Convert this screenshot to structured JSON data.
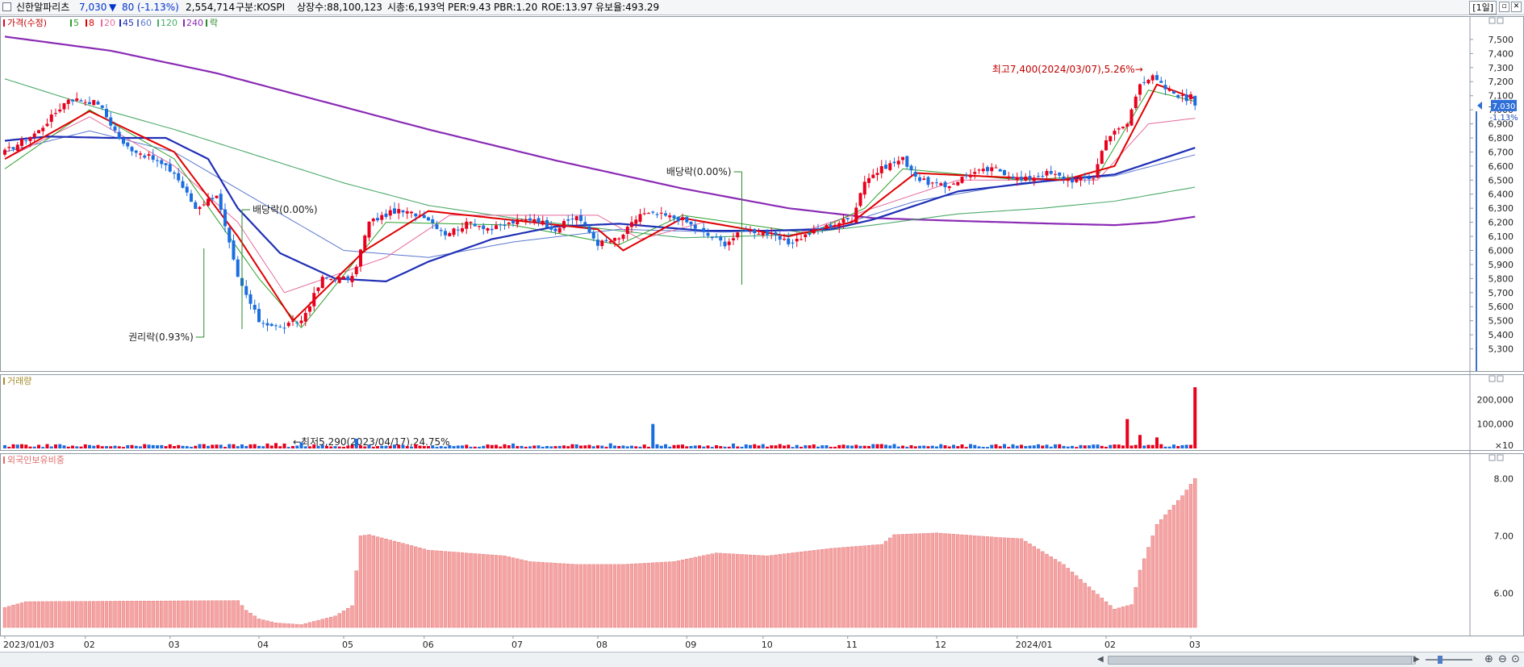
{
  "header": {
    "name": "신한알파리츠",
    "price": "7,030",
    "change_arrow": "▼",
    "change": "80",
    "change_pct": "(-1.13%)",
    "volume": "2,554,714",
    "market": "구분:KOSPI",
    "shares": "상장수:88,100,123",
    "mcap": "시총:6,193억",
    "per": "PER:9.43",
    "pbr": "PBR:1.20",
    "roe": "ROE:13.97",
    "float_ratio": "유보율:493.29",
    "period": "[1일]"
  },
  "legend": {
    "price_label": "가격(수정)",
    "ma_labels": [
      "5",
      "8",
      "20",
      "45",
      "60",
      "120",
      "240"
    ],
    "drop_label": "락",
    "volume_label": "거래량",
    "foreign_label": "외국인보유비중"
  },
  "colors": {
    "up": "#e8001c",
    "down": "#1a6ee0",
    "ma5": "#2ca02c",
    "ma8": "#e00000",
    "ma20": "#e56b9d",
    "ma45": "#1f2fb5",
    "ma60": "#5a78d0",
    "ma120": "#4caa6a",
    "ma240": "#8a2bb5",
    "foreign": "#f5a3a3"
  },
  "chart_data": [
    {
      "type": "candlestick",
      "title": "가격(수정)",
      "y_ticks": [
        5300,
        5400,
        5500,
        5600,
        5700,
        5800,
        5900,
        6000,
        6100,
        6200,
        6300,
        6400,
        6500,
        6600,
        6700,
        6800,
        6900,
        7000,
        7100,
        7200,
        7300,
        7400,
        7500
      ],
      "y_tick_labels": [
        "5,300",
        "5,400",
        "5,500",
        "5,600",
        "5,700",
        "5,800",
        "5,900",
        "6,000",
        "6,100",
        "6,200",
        "6,300",
        "6,400",
        "6,500",
        "6,600",
        "6,700",
        "6,800",
        "6,900",
        "7,000",
        "7,100",
        "7,200",
        "7,300",
        "7,400",
        "7,500"
      ],
      "ylim": [
        5200,
        7620
      ],
      "x_labels": [
        "2023/01/03",
        "02",
        "03",
        "04",
        "05",
        "06",
        "07",
        "08",
        "09",
        "10",
        "11",
        "12",
        "2024/01",
        "02",
        "03"
      ],
      "current_price": "7,030",
      "current_change": "-1.13%",
      "close_keypoints": [
        [
          0,
          6700
        ],
        [
          8,
          6850
        ],
        [
          15,
          7080
        ],
        [
          22,
          7050
        ],
        [
          28,
          6750
        ],
        [
          35,
          6650
        ],
        [
          40,
          6550
        ],
        [
          45,
          6300
        ],
        [
          50,
          6400
        ],
        [
          55,
          5800
        ],
        [
          60,
          5500
        ],
        [
          65,
          5450
        ],
        [
          70,
          5500
        ],
        [
          75,
          5800
        ],
        [
          82,
          5800
        ],
        [
          86,
          6200
        ],
        [
          92,
          6280
        ],
        [
          99,
          6250
        ],
        [
          104,
          6120
        ],
        [
          110,
          6200
        ],
        [
          115,
          6150
        ],
        [
          120,
          6200
        ],
        [
          125,
          6230
        ],
        [
          130,
          6150
        ],
        [
          135,
          6250
        ],
        [
          140,
          6050
        ],
        [
          145,
          6080
        ],
        [
          150,
          6260
        ],
        [
          155,
          6250
        ],
        [
          160,
          6220
        ],
        [
          165,
          6120
        ],
        [
          170,
          6050
        ],
        [
          175,
          6150
        ],
        [
          180,
          6120
        ],
        [
          185,
          6050
        ],
        [
          192,
          6150
        ],
        [
          200,
          6230
        ],
        [
          203,
          6500
        ],
        [
          208,
          6600
        ],
        [
          212,
          6650
        ],
        [
          216,
          6500
        ],
        [
          222,
          6450
        ],
        [
          228,
          6550
        ],
        [
          234,
          6580
        ],
        [
          240,
          6500
        ],
        [
          246,
          6550
        ],
        [
          252,
          6500
        ],
        [
          257,
          6520
        ],
        [
          260,
          6800
        ],
        [
          265,
          6900
        ],
        [
          268,
          7200
        ],
        [
          271,
          7230
        ],
        [
          274,
          7150
        ],
        [
          278,
          7090
        ],
        [
          281,
          7030
        ]
      ],
      "ma_keypoints": {
        "ma5": [
          [
            0,
            6580
          ],
          [
            20,
            7000
          ],
          [
            40,
            6650
          ],
          [
            60,
            5800
          ],
          [
            70,
            5450
          ],
          [
            90,
            6200
          ],
          [
            120,
            6180
          ],
          [
            145,
            6040
          ],
          [
            160,
            6250
          ],
          [
            190,
            6120
          ],
          [
            203,
            6300
          ],
          [
            212,
            6580
          ],
          [
            240,
            6500
          ],
          [
            258,
            6530
          ],
          [
            270,
            7140
          ],
          [
            281,
            7060
          ]
        ],
        "ma8": [
          [
            0,
            6650
          ],
          [
            20,
            6990
          ],
          [
            40,
            6700
          ],
          [
            55,
            6100
          ],
          [
            68,
            5500
          ],
          [
            85,
            6000
          ],
          [
            100,
            6280
          ],
          [
            140,
            6150
          ],
          [
            146,
            6000
          ],
          [
            160,
            6230
          ],
          [
            185,
            6100
          ],
          [
            200,
            6200
          ],
          [
            215,
            6550
          ],
          [
            250,
            6500
          ],
          [
            262,
            6600
          ],
          [
            272,
            7180
          ],
          [
            281,
            7080
          ]
        ],
        "ma20": [
          [
            0,
            6650
          ],
          [
            20,
            6950
          ],
          [
            40,
            6600
          ],
          [
            55,
            6200
          ],
          [
            66,
            5700
          ],
          [
            90,
            5950
          ],
          [
            105,
            6250
          ],
          [
            140,
            6250
          ],
          [
            150,
            6080
          ],
          [
            165,
            6200
          ],
          [
            185,
            6100
          ],
          [
            205,
            6300
          ],
          [
            225,
            6500
          ],
          [
            258,
            6500
          ],
          [
            270,
            6900
          ],
          [
            281,
            6940
          ]
        ],
        "ma45": [
          [
            0,
            6780
          ],
          [
            10,
            6810
          ],
          [
            25,
            6800
          ],
          [
            38,
            6800
          ],
          [
            48,
            6650
          ],
          [
            55,
            6300
          ],
          [
            65,
            5980
          ],
          [
            78,
            5800
          ],
          [
            90,
            5780
          ],
          [
            100,
            5920
          ],
          [
            115,
            6080
          ],
          [
            130,
            6170
          ],
          [
            145,
            6190
          ],
          [
            165,
            6140
          ],
          [
            180,
            6140
          ],
          [
            195,
            6150
          ],
          [
            205,
            6220
          ],
          [
            225,
            6420
          ],
          [
            245,
            6490
          ],
          [
            262,
            6540
          ],
          [
            275,
            6670
          ],
          [
            281,
            6730
          ]
        ],
        "ma60": [
          [
            0,
            6700
          ],
          [
            20,
            6850
          ],
          [
            40,
            6700
          ],
          [
            60,
            6350
          ],
          [
            80,
            6000
          ],
          [
            100,
            5950
          ],
          [
            120,
            6060
          ],
          [
            145,
            6150
          ],
          [
            170,
            6130
          ],
          [
            195,
            6160
          ],
          [
            215,
            6350
          ],
          [
            240,
            6480
          ],
          [
            262,
            6530
          ],
          [
            281,
            6680
          ]
        ],
        "ma120": [
          [
            0,
            7220
          ],
          [
            20,
            7030
          ],
          [
            40,
            6860
          ],
          [
            60,
            6670
          ],
          [
            80,
            6480
          ],
          [
            100,
            6320
          ],
          [
            120,
            6230
          ],
          [
            145,
            6140
          ],
          [
            160,
            6090
          ],
          [
            185,
            6110
          ],
          [
            205,
            6180
          ],
          [
            225,
            6260
          ],
          [
            245,
            6300
          ],
          [
            262,
            6350
          ],
          [
            281,
            6450
          ]
        ],
        "ma240": [
          [
            0,
            7520
          ],
          [
            25,
            7420
          ],
          [
            50,
            7260
          ],
          [
            75,
            7060
          ],
          [
            100,
            6860
          ],
          [
            130,
            6640
          ],
          [
            160,
            6440
          ],
          [
            185,
            6300
          ],
          [
            205,
            6230
          ],
          [
            225,
            6210
          ],
          [
            248,
            6190
          ],
          [
            262,
            6180
          ],
          [
            272,
            6200
          ],
          [
            281,
            6240
          ]
        ]
      },
      "annotations": [
        {
          "label": "권리락(0.93%)",
          "index": 47
        },
        {
          "label": "배당락(0.00%)",
          "index": 56
        },
        {
          "label": "배당락(0.00%)",
          "index": 174
        },
        {
          "label": "←최저5,290(2023/04/17),24.75%",
          "index": 68
        },
        {
          "label": "최고7,400(2024/03/07),5.26%→",
          "index": 271
        }
      ]
    },
    {
      "type": "bar",
      "title": "거래량",
      "y_ticks": [
        10,
        100000,
        200000
      ],
      "y_tick_labels": [
        "×10",
        "100,000",
        "200,000"
      ],
      "ylim": [
        0,
        290000
      ],
      "typical": 12000,
      "spikes": [
        [
          62,
          20000
        ],
        [
          64,
          22000
        ],
        [
          66,
          20000
        ],
        [
          70,
          25000
        ],
        [
          83,
          40000
        ],
        [
          93,
          15000
        ],
        [
          120,
          20000
        ],
        [
          143,
          21000
        ],
        [
          153,
          100000
        ],
        [
          172,
          20000
        ],
        [
          210,
          18000
        ],
        [
          265,
          120000
        ],
        [
          268,
          55000
        ],
        [
          272,
          45000
        ],
        [
          281,
          250000
        ]
      ]
    },
    {
      "type": "bar",
      "title": "외국인보유비중",
      "y_ticks": [
        6.0,
        7.0,
        8.0
      ],
      "y_tick_labels": [
        "6.00",
        "7.00",
        "8.00"
      ],
      "ylim": [
        5.4,
        8.3
      ],
      "keypoints": [
        [
          0,
          5.75
        ],
        [
          5,
          5.85
        ],
        [
          55,
          5.87
        ],
        [
          57,
          5.7
        ],
        [
          60,
          5.55
        ],
        [
          64,
          5.48
        ],
        [
          70,
          5.45
        ],
        [
          78,
          5.6
        ],
        [
          82,
          5.78
        ],
        [
          84,
          7.0
        ],
        [
          86,
          7.02
        ],
        [
          95,
          6.85
        ],
        [
          100,
          6.75
        ],
        [
          118,
          6.65
        ],
        [
          124,
          6.55
        ],
        [
          135,
          6.5
        ],
        [
          146,
          6.5
        ],
        [
          158,
          6.55
        ],
        [
          168,
          6.7
        ],
        [
          180,
          6.65
        ],
        [
          195,
          6.78
        ],
        [
          207,
          6.85
        ],
        [
          210,
          7.02
        ],
        [
          220,
          7.05
        ],
        [
          235,
          6.97
        ],
        [
          240,
          6.95
        ],
        [
          250,
          6.5
        ],
        [
          262,
          5.72
        ],
        [
          266,
          5.8
        ],
        [
          268,
          6.4
        ],
        [
          272,
          7.2
        ],
        [
          278,
          7.7
        ],
        [
          281,
          8.0
        ]
      ]
    }
  ]
}
